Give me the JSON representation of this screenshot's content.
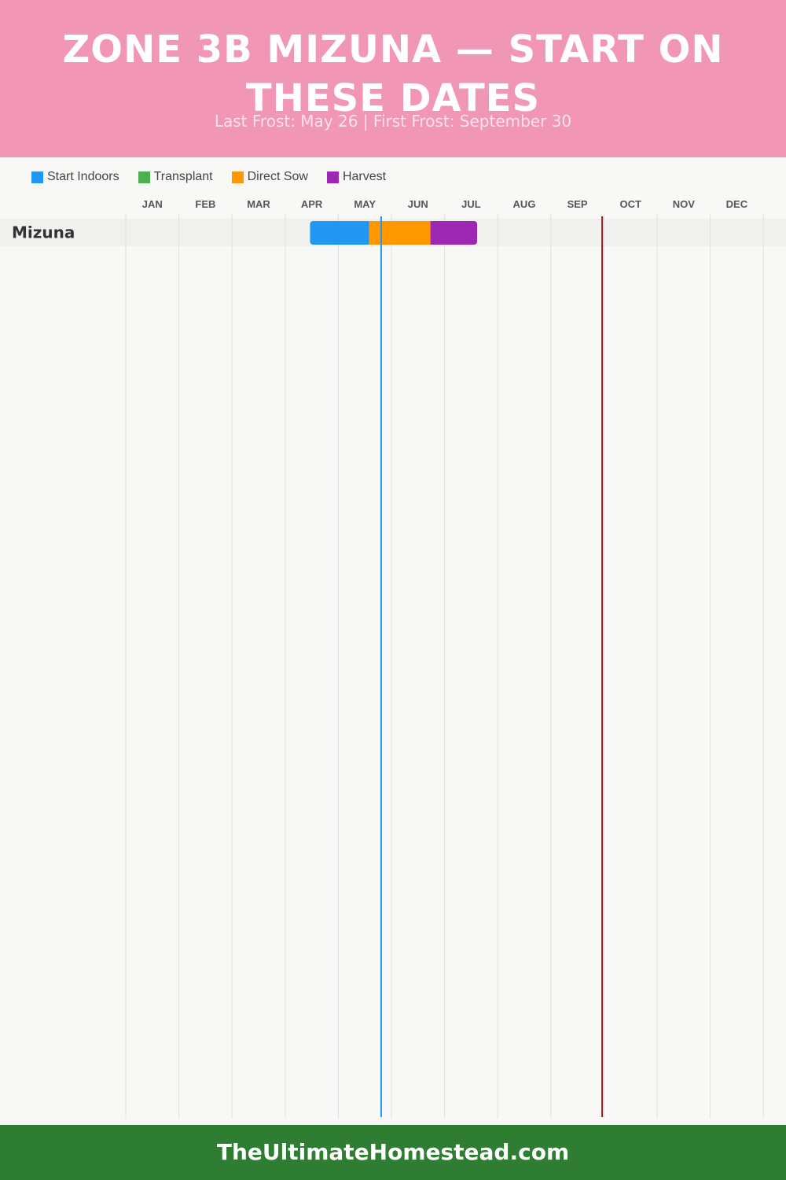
{
  "header": {
    "title": "ZONE 3B MIZUNA — START ON THESE DATES",
    "subtitle": "Last Frost: May 26 | First Frost: September 30"
  },
  "legend": [
    {
      "label": "Start Indoors",
      "color": "#2196f3"
    },
    {
      "label": "Transplant",
      "color": "#4caf50"
    },
    {
      "label": "Direct Sow",
      "color": "#ff9800"
    },
    {
      "label": "Harvest",
      "color": "#9c27b0"
    }
  ],
  "footer": {
    "site": "TheUltimateHomestead.com"
  },
  "chart_data": {
    "type": "gantt",
    "months": [
      "JAN",
      "FEB",
      "MAR",
      "APR",
      "MAY",
      "JUN",
      "JUL",
      "AUG",
      "SEP",
      "OCT",
      "NOV",
      "DEC"
    ],
    "rows": [
      {
        "crop": "Mizuna",
        "segments": [
          {
            "phase": "Start Indoors",
            "start": "Apr 15",
            "end": "May 19",
            "color": "#2196f3"
          },
          {
            "phase": "Direct Sow",
            "start": "May 19",
            "end": "Jun 23",
            "color": "#ff9800"
          },
          {
            "phase": "Harvest",
            "start": "Jun 23",
            "end": "Jul 20",
            "color": "#9c27b0"
          }
        ]
      }
    ],
    "markers": [
      {
        "name": "Last Frost",
        "date": "May 26",
        "color": "#2196f3"
      },
      {
        "name": "First Frost",
        "date": "Sep 30",
        "color": "#8b1a1a"
      }
    ]
  }
}
